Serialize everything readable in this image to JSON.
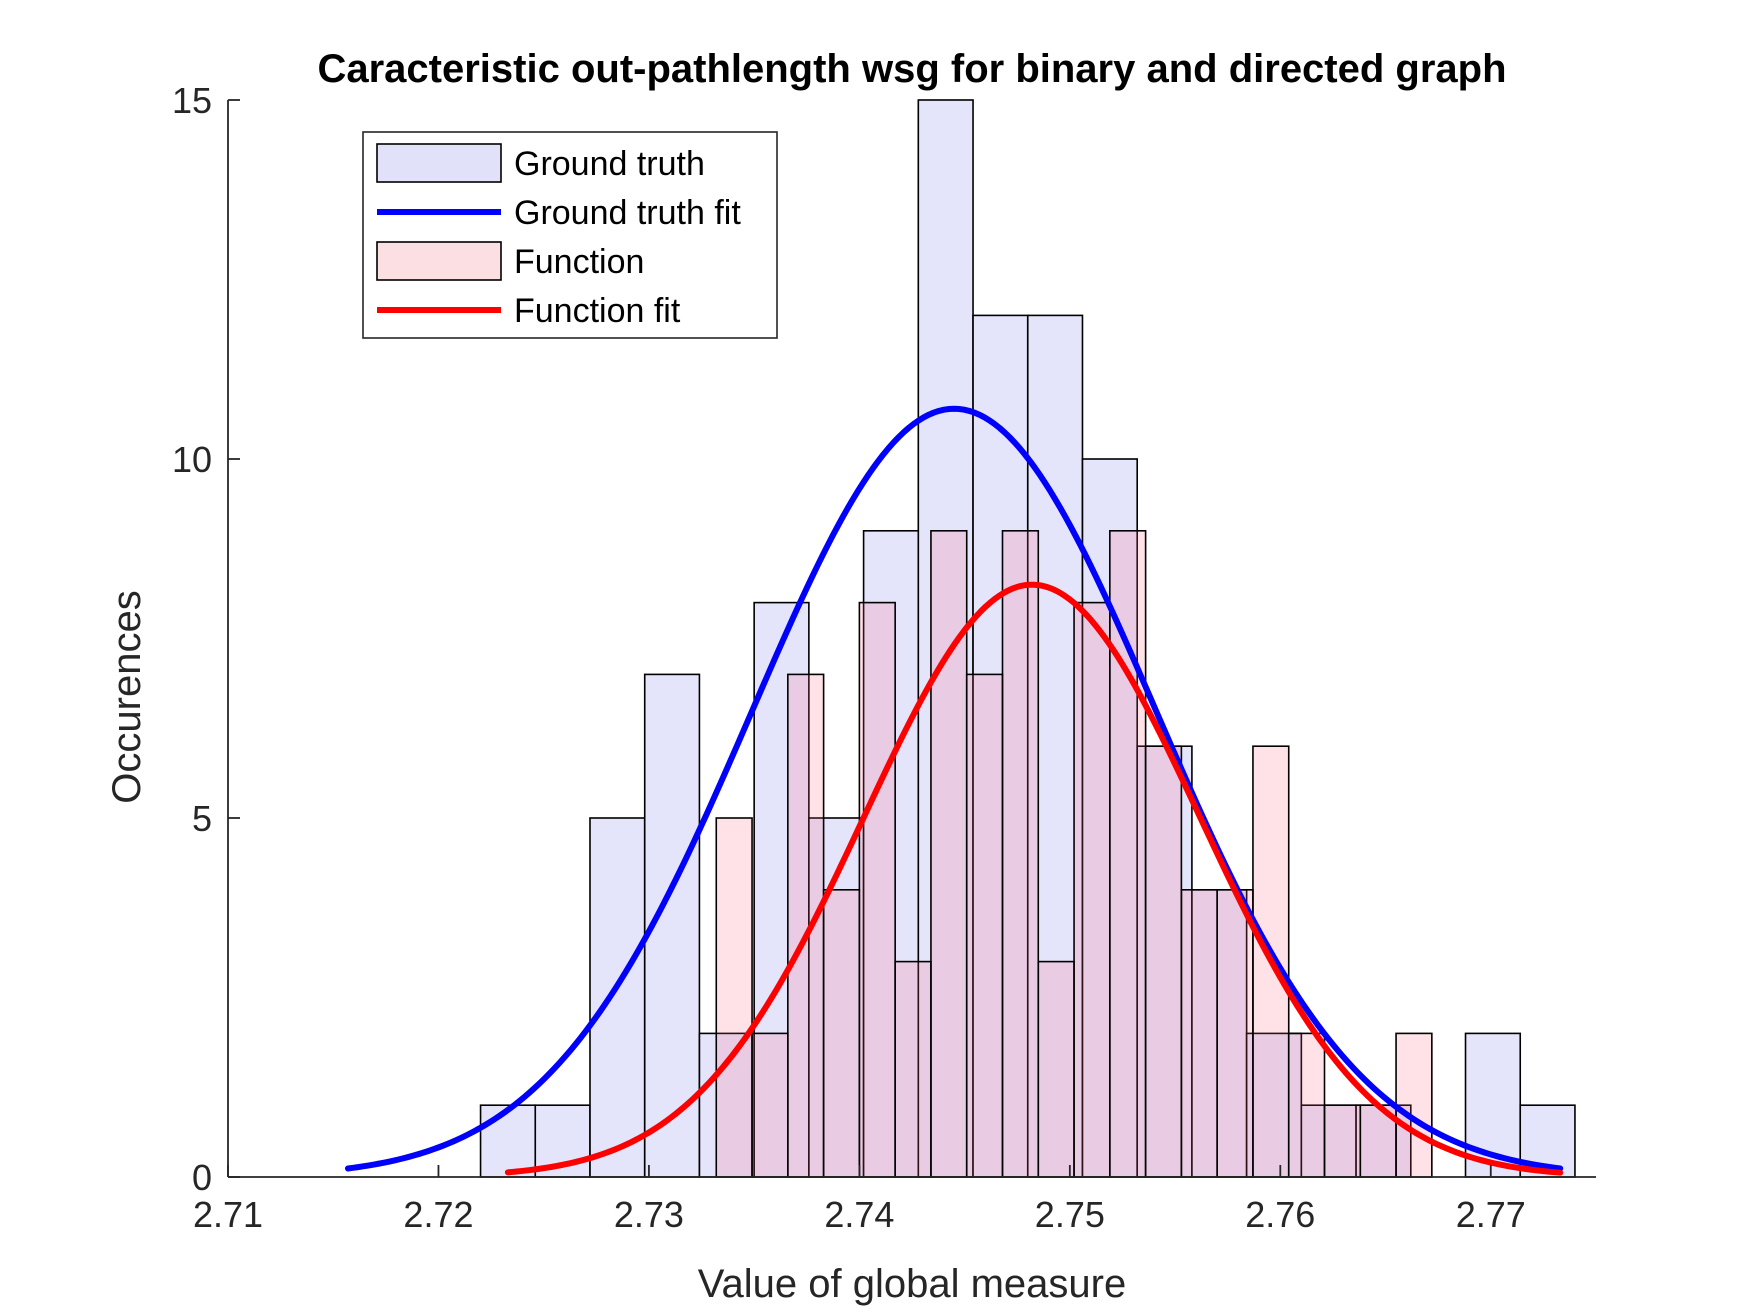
{
  "chart_data": {
    "type": "bar",
    "title": "Caracteristic out-pathlength wsg for binary and directed graph",
    "xlabel": "Value of global measure",
    "ylabel": "Occurences",
    "xlim": [
      2.71,
      2.775
    ],
    "ylim": [
      0,
      15
    ],
    "xticks": [
      2.71,
      2.72,
      2.73,
      2.74,
      2.75,
      2.76,
      2.77
    ],
    "xtick_labels": [
      "2.71",
      "2.72",
      "2.73",
      "2.74",
      "2.75",
      "2.76",
      "2.77"
    ],
    "yticks": [
      0,
      5,
      10,
      15
    ],
    "ytick_labels": [
      "0",
      "5",
      "10",
      "15"
    ],
    "grid": false,
    "legend_position": "top-left",
    "series": [
      {
        "name": "Ground truth",
        "kind": "histogram",
        "face_color": "#e1e1fa",
        "bin_edges": [
          2.722,
          2.7246,
          2.7272,
          2.7298,
          2.7324,
          2.735,
          2.7376,
          2.7402,
          2.7428,
          2.7454,
          2.748,
          2.7506,
          2.7532,
          2.7558,
          2.7584,
          2.761,
          2.7636,
          2.7662,
          2.7688,
          2.7714,
          2.774
        ],
        "counts": [
          1,
          1,
          5,
          7,
          2,
          8,
          5,
          9,
          15,
          12,
          12,
          10,
          6,
          4,
          2,
          1,
          1,
          0,
          2,
          1
        ]
      },
      {
        "name": "Ground truth fit",
        "kind": "normal_fit",
        "color": "#0000ff",
        "mean": 2.7445,
        "sigma": 0.0096,
        "peak": 10.7,
        "x_range": [
          2.7157,
          2.7733
        ]
      },
      {
        "name": "Function",
        "kind": "histogram",
        "face_color": "#fbdfe3",
        "bin_edges": [
          2.7332,
          2.7349,
          2.7366,
          2.7383,
          2.74,
          2.7417,
          2.7434,
          2.7451,
          2.7468,
          2.7485,
          2.7502,
          2.7519,
          2.7536,
          2.7553,
          2.757,
          2.7587,
          2.7604,
          2.7621,
          2.7638,
          2.7655,
          2.7672
        ],
        "counts": [
          5,
          2,
          7,
          4,
          8,
          3,
          9,
          7,
          9,
          3,
          8,
          9,
          6,
          4,
          4,
          6,
          2,
          1,
          1,
          2
        ]
      },
      {
        "name": "Function fit",
        "kind": "normal_fit",
        "color": "#ff0000",
        "mean": 2.7482,
        "sigma": 0.008,
        "peak": 8.25,
        "x_range": [
          2.7233,
          2.7733
        ]
      }
    ]
  }
}
